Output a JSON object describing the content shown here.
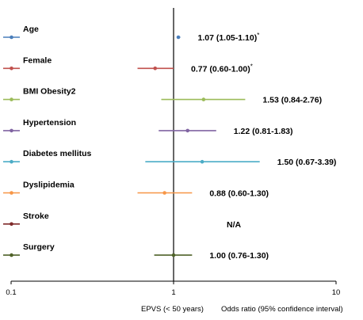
{
  "chart_data": {
    "type": "forest",
    "x_scale": "log",
    "xlim": [
      0.1,
      10
    ],
    "x_ticks": [
      "0.1",
      "1",
      "10"
    ],
    "x_tick_values": [
      0.1,
      1,
      10
    ],
    "reference_line": 1,
    "footer_left": "EPVS (< 50 years)",
    "footer_right": "Odds ratio (95% confidence interval)",
    "series": [
      {
        "label": "Age",
        "or": 1.07,
        "lo": 1.05,
        "hi": 1.1,
        "text": "1.07 (1.05-1.10)",
        "sig": "*",
        "color": "#4a7ebb"
      },
      {
        "label": "Female",
        "or": 0.77,
        "lo": 0.6,
        "hi": 1.0,
        "text": "0.77 (0.60-1.00)",
        "sig": "*",
        "color": "#c0504d"
      },
      {
        "label": "BMI Obesity2",
        "or": 1.53,
        "lo": 0.84,
        "hi": 2.76,
        "text": "1.53 (0.84-2.76)",
        "sig": "",
        "color": "#9bbb59"
      },
      {
        "label": "Hypertension",
        "or": 1.22,
        "lo": 0.81,
        "hi": 1.83,
        "text": "1.22 (0.81-1.83)",
        "sig": "",
        "color": "#8064a2"
      },
      {
        "label": "Diabetes mellitus",
        "or": 1.5,
        "lo": 0.67,
        "hi": 3.39,
        "text": "1.50 (0.67-3.39)",
        "sig": "",
        "color": "#4bacc6"
      },
      {
        "label": "Dyslipidemia",
        "or": 0.88,
        "lo": 0.6,
        "hi": 1.3,
        "text": "0.88 (0.60-1.30)",
        "sig": "",
        "color": "#f79646"
      },
      {
        "label": "Stroke",
        "or": null,
        "lo": null,
        "hi": null,
        "text": "N/A",
        "sig": "",
        "color": "#7f2a2a"
      },
      {
        "label": "Surgery",
        "or": 1.0,
        "lo": 0.76,
        "hi": 1.3,
        "text": "1.00 (0.76-1.30)",
        "sig": "",
        "color": "#4f6228"
      }
    ]
  }
}
